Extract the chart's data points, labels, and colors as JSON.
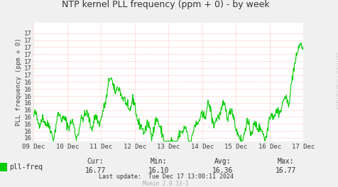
{
  "title": "NTP kernel PLL frequency (ppm + 0) - by week",
  "ylabel": "PLL frequency (ppm + 0)",
  "xlabel_dates": [
    "09 Dec",
    "10 Dec",
    "11 Dec",
    "12 Dec",
    "13 Dec",
    "14 Dec",
    "15 Dec",
    "16 Dec",
    "17 Dec"
  ],
  "ylim": [
    16.05,
    17.75
  ],
  "ytick_positions": [
    16.1,
    16.2,
    16.3,
    16.4,
    16.5,
    16.6,
    16.7,
    16.8,
    16.9,
    17.0,
    17.1,
    17.2,
    17.3,
    17.4,
    17.5,
    17.6
  ],
  "ytick_labels": [
    "16",
    "16",
    "16",
    "16",
    "16",
    "16",
    "16",
    "16",
    "16",
    "17",
    "17",
    "17",
    "17",
    "17",
    "17",
    "17"
  ],
  "line_color": "#00cc00",
  "bg_color": "#f0f0f0",
  "plot_bg": "#ffffff",
  "grid_color": "#ff9999",
  "legend_label": "pll-freq",
  "legend_color": "#00cc00",
  "cur": "16.77",
  "min": "16.10",
  "avg": "16.36",
  "max": "16.77",
  "last_update": "Tue Dec 17 13:00:11 2024",
  "munin_version": "Munin 2.0.33-1",
  "watermark": "RRDTOOL / TOBI OETIKER",
  "n_points": 600
}
